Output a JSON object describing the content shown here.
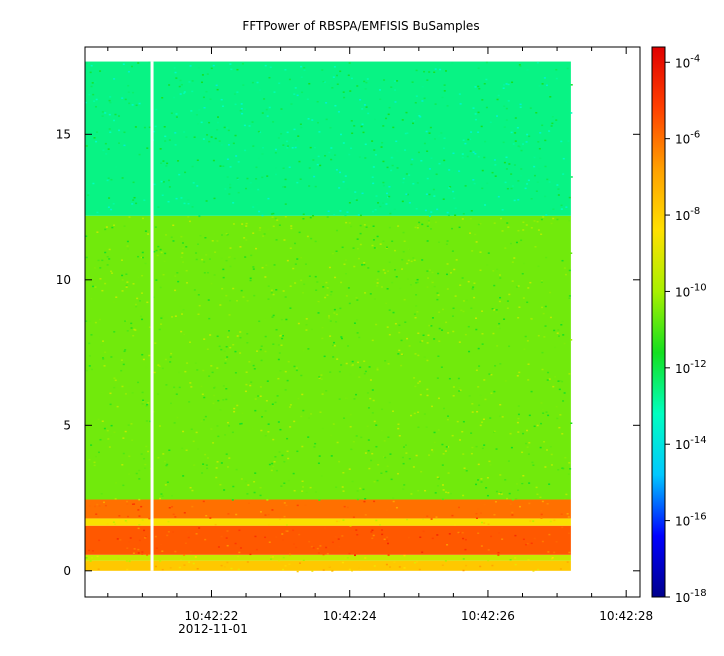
{
  "chart_data": {
    "type": "heatmap",
    "title": "FFTPower of RBSPA/EMFISIS  BuSamples",
    "xlabel": "",
    "ylabel": "",
    "x_ticks": [
      {
        "value": 22,
        "label": "10:42:22"
      },
      {
        "value": 24,
        "label": "10:42:24"
      },
      {
        "value": 26,
        "label": "10:42:26"
      },
      {
        "value": 28,
        "label": "10:42:28"
      }
    ],
    "x_minor_ticks": [
      20.5,
      21.0,
      21.5,
      22.5,
      23.0,
      23.5,
      24.5,
      25.0,
      25.5,
      26.5,
      27.0,
      27.5
    ],
    "x_sublabel": "2012-11-01",
    "xlim": [
      20.17,
      28.2
    ],
    "ylim": [
      -0.9,
      18.0
    ],
    "y_ticks": [
      0,
      5,
      10,
      15
    ],
    "data_extent": {
      "x": [
        20.17,
        27.2
      ],
      "y": [
        0,
        17.5
      ]
    },
    "data_gap_x": 21.14,
    "regions": [
      {
        "y": [
          0.0,
          0.35
        ],
        "log_power": -7.8
      },
      {
        "y": [
          0.35,
          0.55
        ],
        "log_power": -9.5
      },
      {
        "y": [
          0.55,
          1.55
        ],
        "log_power": -5.6
      },
      {
        "y": [
          1.55,
          1.8
        ],
        "log_power": -8.5
      },
      {
        "y": [
          1.8,
          2.45
        ],
        "log_power": -6.0
      },
      {
        "y": [
          2.45,
          12.2
        ],
        "log_power": -10.6
      },
      {
        "y": [
          12.2,
          17.5
        ],
        "log_power": -12.6
      }
    ],
    "colorbar": {
      "scale": "log",
      "range": [
        -18,
        -3.6
      ],
      "ticks": [
        {
          "value": -4,
          "base": "10",
          "exp": "-4"
        },
        {
          "value": -6,
          "base": "10",
          "exp": "-6"
        },
        {
          "value": -8,
          "base": "10",
          "exp": "-8"
        },
        {
          "value": -10,
          "base": "10",
          "exp": "-10"
        },
        {
          "value": -12,
          "base": "10",
          "exp": "-12"
        },
        {
          "value": -14,
          "base": "10",
          "exp": "-14"
        },
        {
          "value": -16,
          "base": "10",
          "exp": "-16"
        },
        {
          "value": -18,
          "base": "10",
          "exp": "-18"
        }
      ],
      "colors": [
        "#00008c",
        "#0000ff",
        "#00c8ff",
        "#00ffc0",
        "#14e020",
        "#a8f000",
        "#ffe000",
        "#ffa000",
        "#ff4000",
        "#e00000"
      ]
    }
  }
}
